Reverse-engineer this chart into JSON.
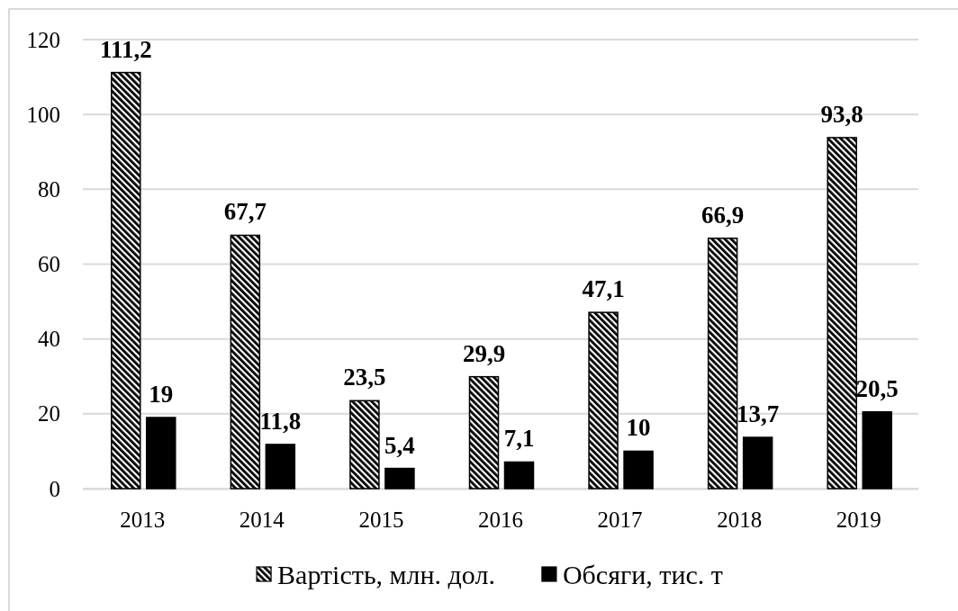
{
  "chart_data": {
    "type": "bar",
    "categories": [
      "2013",
      "2014",
      "2015",
      "2016",
      "2017",
      "2018",
      "2019"
    ],
    "series": [
      {
        "name": "Вартість, млн. дол.",
        "color": "#000000",
        "values": [
          111.2,
          67.7,
          23.5,
          29.9,
          47.1,
          66.9,
          93.8
        ],
        "value_labels": [
          "111,2",
          "67,7",
          "23,5",
          "29,9",
          "47,1",
          "66,9",
          "93,8"
        ]
      },
      {
        "name": "Обсяги, тис. т",
        "color": "#000000",
        "values": [
          19,
          11.8,
          5.4,
          7.1,
          10,
          13.7,
          20.5
        ],
        "value_labels": [
          "19",
          "11,8",
          "5,4",
          "7,1",
          "10",
          "13,7",
          "20,5"
        ]
      }
    ],
    "ylim": [
      0,
      120
    ],
    "yticks": [
      0,
      20,
      40,
      60,
      80,
      100,
      120
    ],
    "grid": "y",
    "legend": "bottom"
  }
}
